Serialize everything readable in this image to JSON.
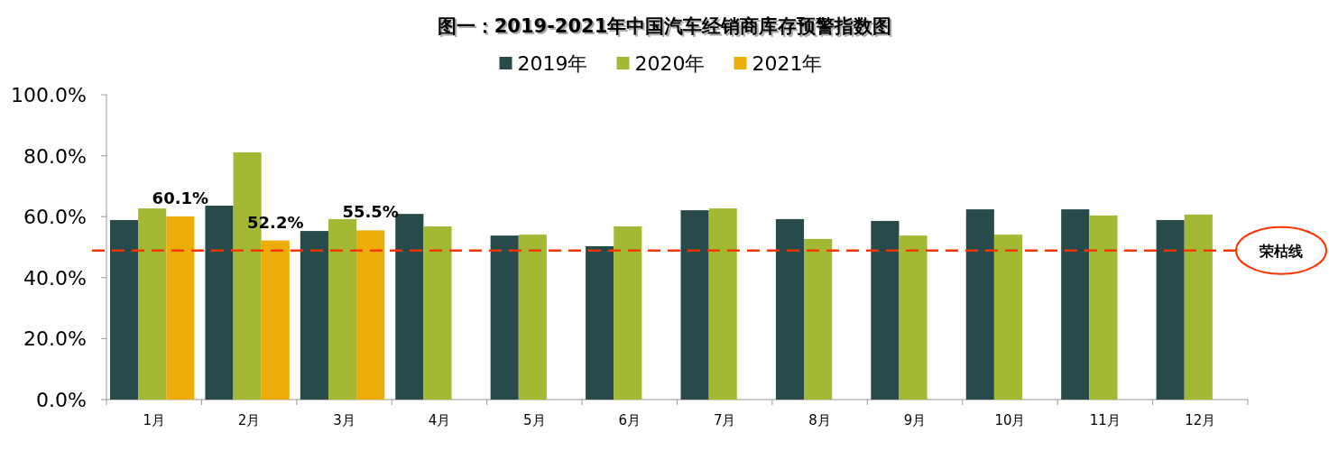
{
  "chart_data": {
    "type": "bar",
    "title": "图一：2019-2021年中国汽车经销商库存预警指数图",
    "categories": [
      "1月",
      "2月",
      "3月",
      "4月",
      "5月",
      "6月",
      "7月",
      "8月",
      "9月",
      "10月",
      "11月",
      "12月"
    ],
    "series": [
      {
        "name": "2019年",
        "color": "#284a4a",
        "values": [
          58.9,
          63.6,
          55.3,
          60.9,
          53.8,
          50.3,
          62.1,
          59.2,
          58.6,
          62.4,
          62.4,
          58.9
        ]
      },
      {
        "name": "2020年",
        "color": "#a3b934",
        "values": [
          62.7,
          81.1,
          59.2,
          56.8,
          54.1,
          56.8,
          62.7,
          52.7,
          53.8,
          54.1,
          60.4,
          60.7
        ]
      },
      {
        "name": "2021年",
        "color": "#ecad0a",
        "values": [
          60.1,
          52.2,
          55.5,
          null,
          null,
          null,
          null,
          null,
          null,
          null,
          null,
          null
        ],
        "value_labels": [
          "60.1%",
          "52.2%",
          "55.5%",
          null,
          null,
          null,
          null,
          null,
          null,
          null,
          null,
          null
        ]
      }
    ],
    "ylim": [
      0,
      100
    ],
    "yticks": [
      {
        "value": 0,
        "label": "0.0%"
      },
      {
        "value": 20,
        "label": "20.0%"
      },
      {
        "value": 40,
        "label": "40.0%"
      },
      {
        "value": 60,
        "label": "60.0%"
      },
      {
        "value": 80,
        "label": "80.0%"
      },
      {
        "value": 100,
        "label": "100.0%"
      }
    ],
    "legend": "top",
    "ref_lines": [
      {
        "axis": "y",
        "value": 48.9,
        "label": "荣枯线",
        "color": "#ff3300",
        "line_style": "dashed"
      }
    ]
  }
}
